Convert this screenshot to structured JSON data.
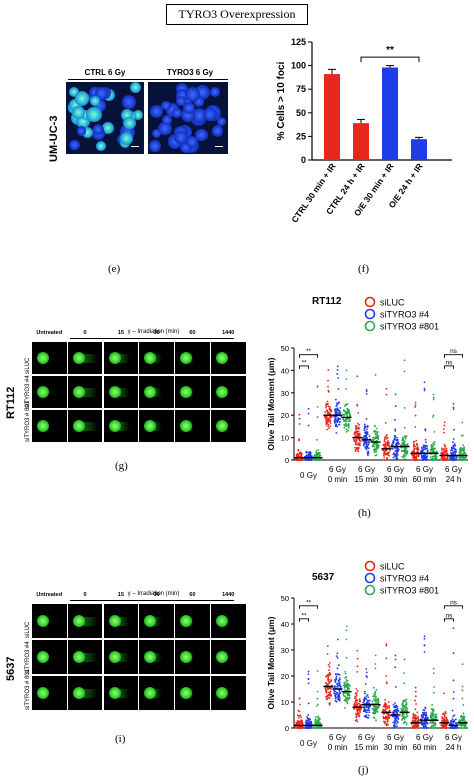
{
  "title": "TYRO3 Overexpression",
  "panel_e": {
    "letter": "(e)",
    "side_label": "UM-UC-3",
    "col_labels": [
      "CTRL 6 Gy",
      "TYRO3 6 Gy"
    ]
  },
  "panel_f": {
    "letter": "(f)",
    "significance": "**"
  },
  "panel_g": {
    "letter": "(g)",
    "side_label": "RT112",
    "group_label": "γ – Irradiation (min)",
    "conditions": [
      "Untreated",
      "0",
      "15",
      "30",
      "60",
      "1440"
    ],
    "rows": [
      "siLUC",
      "siTYRO3 #4",
      "siTYRO3 # 801"
    ]
  },
  "panel_h": {
    "letter": "(h)",
    "cell_line": "RT112",
    "sig_left_outer": "**",
    "sig_left_inner": "**",
    "sig_right_outer": "ns",
    "sig_right_inner": "ns"
  },
  "panel_i": {
    "letter": "(i)",
    "side_label": "5637",
    "group_label": "γ – Irradiation (min)",
    "conditions": [
      "Untreated",
      "0",
      "15",
      "30",
      "60",
      "1440"
    ],
    "rows": [
      "siLUC",
      "siTYRO3 #4",
      "siTYRO3 # 801"
    ]
  },
  "panel_j": {
    "letter": "(j)",
    "cell_line": "5637",
    "sig_left_outer": "**",
    "sig_left_inner": "**",
    "sig_right_outer": "ns",
    "sig_right_inner": "ns"
  },
  "colors": {
    "red": "#e8261c",
    "blue": "#1f3ce8",
    "green": "#2aa84a",
    "comet": "#2fd12a"
  },
  "chart_data": [
    {
      "id": "f",
      "type": "bar",
      "ylabel": "% Cells > 10 foci",
      "ylim": [
        0,
        125
      ],
      "yticks": [
        0,
        25,
        50,
        75,
        100,
        125
      ],
      "categories": [
        "CTRL 30 min + IR",
        "CTRL 24 h + IR",
        "O/E 30 min + IR",
        "O/E 24 h + IR"
      ],
      "values": [
        91,
        39,
        98,
        22
      ],
      "errors": [
        5,
        4,
        2,
        2
      ],
      "bar_colors": [
        "#e8261c",
        "#e8261c",
        "#1f3ce8",
        "#1f3ce8"
      ]
    },
    {
      "id": "h",
      "type": "scatter",
      "ylabel": "Olive Tail Moment (μm)",
      "ylim": [
        0,
        50
      ],
      "yticks": [
        0,
        10,
        20,
        30,
        40,
        50
      ],
      "categories": [
        "0 Gy",
        "6 Gy\n0 min",
        "6 Gy\n15 min",
        "6 Gy\n30 min",
        "6 Gy\n60 min",
        "6 Gy\n24 h"
      ],
      "legend": [
        "siLUC",
        "siTYRO3 #4",
        "siTYRO3 #801"
      ],
      "medians": [
        [
          1,
          1,
          1
        ],
        [
          20,
          20,
          19
        ],
        [
          10,
          9,
          8
        ],
        [
          5,
          6,
          6
        ],
        [
          3,
          3,
          3
        ],
        [
          2,
          2,
          2
        ]
      ],
      "spread": [
        [
          3,
          3,
          3
        ],
        [
          6,
          6,
          6
        ],
        [
          6,
          6,
          6
        ],
        [
          5,
          5,
          5
        ],
        [
          5,
          5,
          5
        ],
        [
          4,
          4,
          4
        ]
      ],
      "max": [
        [
          25,
          26,
          40
        ],
        [
          45,
          42,
          44
        ],
        [
          38,
          35,
          38
        ],
        [
          33,
          30,
          45
        ],
        [
          28,
          46,
          30
        ],
        [
          24,
          30,
          18
        ]
      ]
    },
    {
      "id": "j",
      "type": "scatter",
      "ylabel": "Olive Tail Moment (μm)",
      "ylim": [
        0,
        50
      ],
      "yticks": [
        0,
        10,
        20,
        30,
        40,
        50
      ],
      "categories": [
        "0 Gy",
        "6 Gy\n0 min",
        "6 Gy\n15 min",
        "6 Gy\n30 min",
        "6 Gy\n60 min",
        "6 Gy\n24 h"
      ],
      "legend": [
        "siLUC",
        "siTYRO3 #4",
        "siTYRO3 #801"
      ],
      "medians": [
        [
          1,
          1,
          1
        ],
        [
          16,
          15,
          14
        ],
        [
          8,
          9,
          9
        ],
        [
          6,
          5,
          6
        ],
        [
          2,
          3,
          3
        ],
        [
          2,
          1,
          2
        ]
      ],
      "spread": [
        [
          3,
          3,
          3
        ],
        [
          6,
          6,
          6
        ],
        [
          5,
          5,
          5
        ],
        [
          5,
          5,
          5
        ],
        [
          4,
          4,
          4
        ],
        [
          3,
          3,
          3
        ]
      ],
      "max": [
        [
          20,
          22,
          25
        ],
        [
          40,
          45,
          44
        ],
        [
          30,
          30,
          28
        ],
        [
          38,
          30,
          32
        ],
        [
          18,
          36,
          35
        ],
        [
          16,
          40,
          32
        ]
      ]
    }
  ]
}
